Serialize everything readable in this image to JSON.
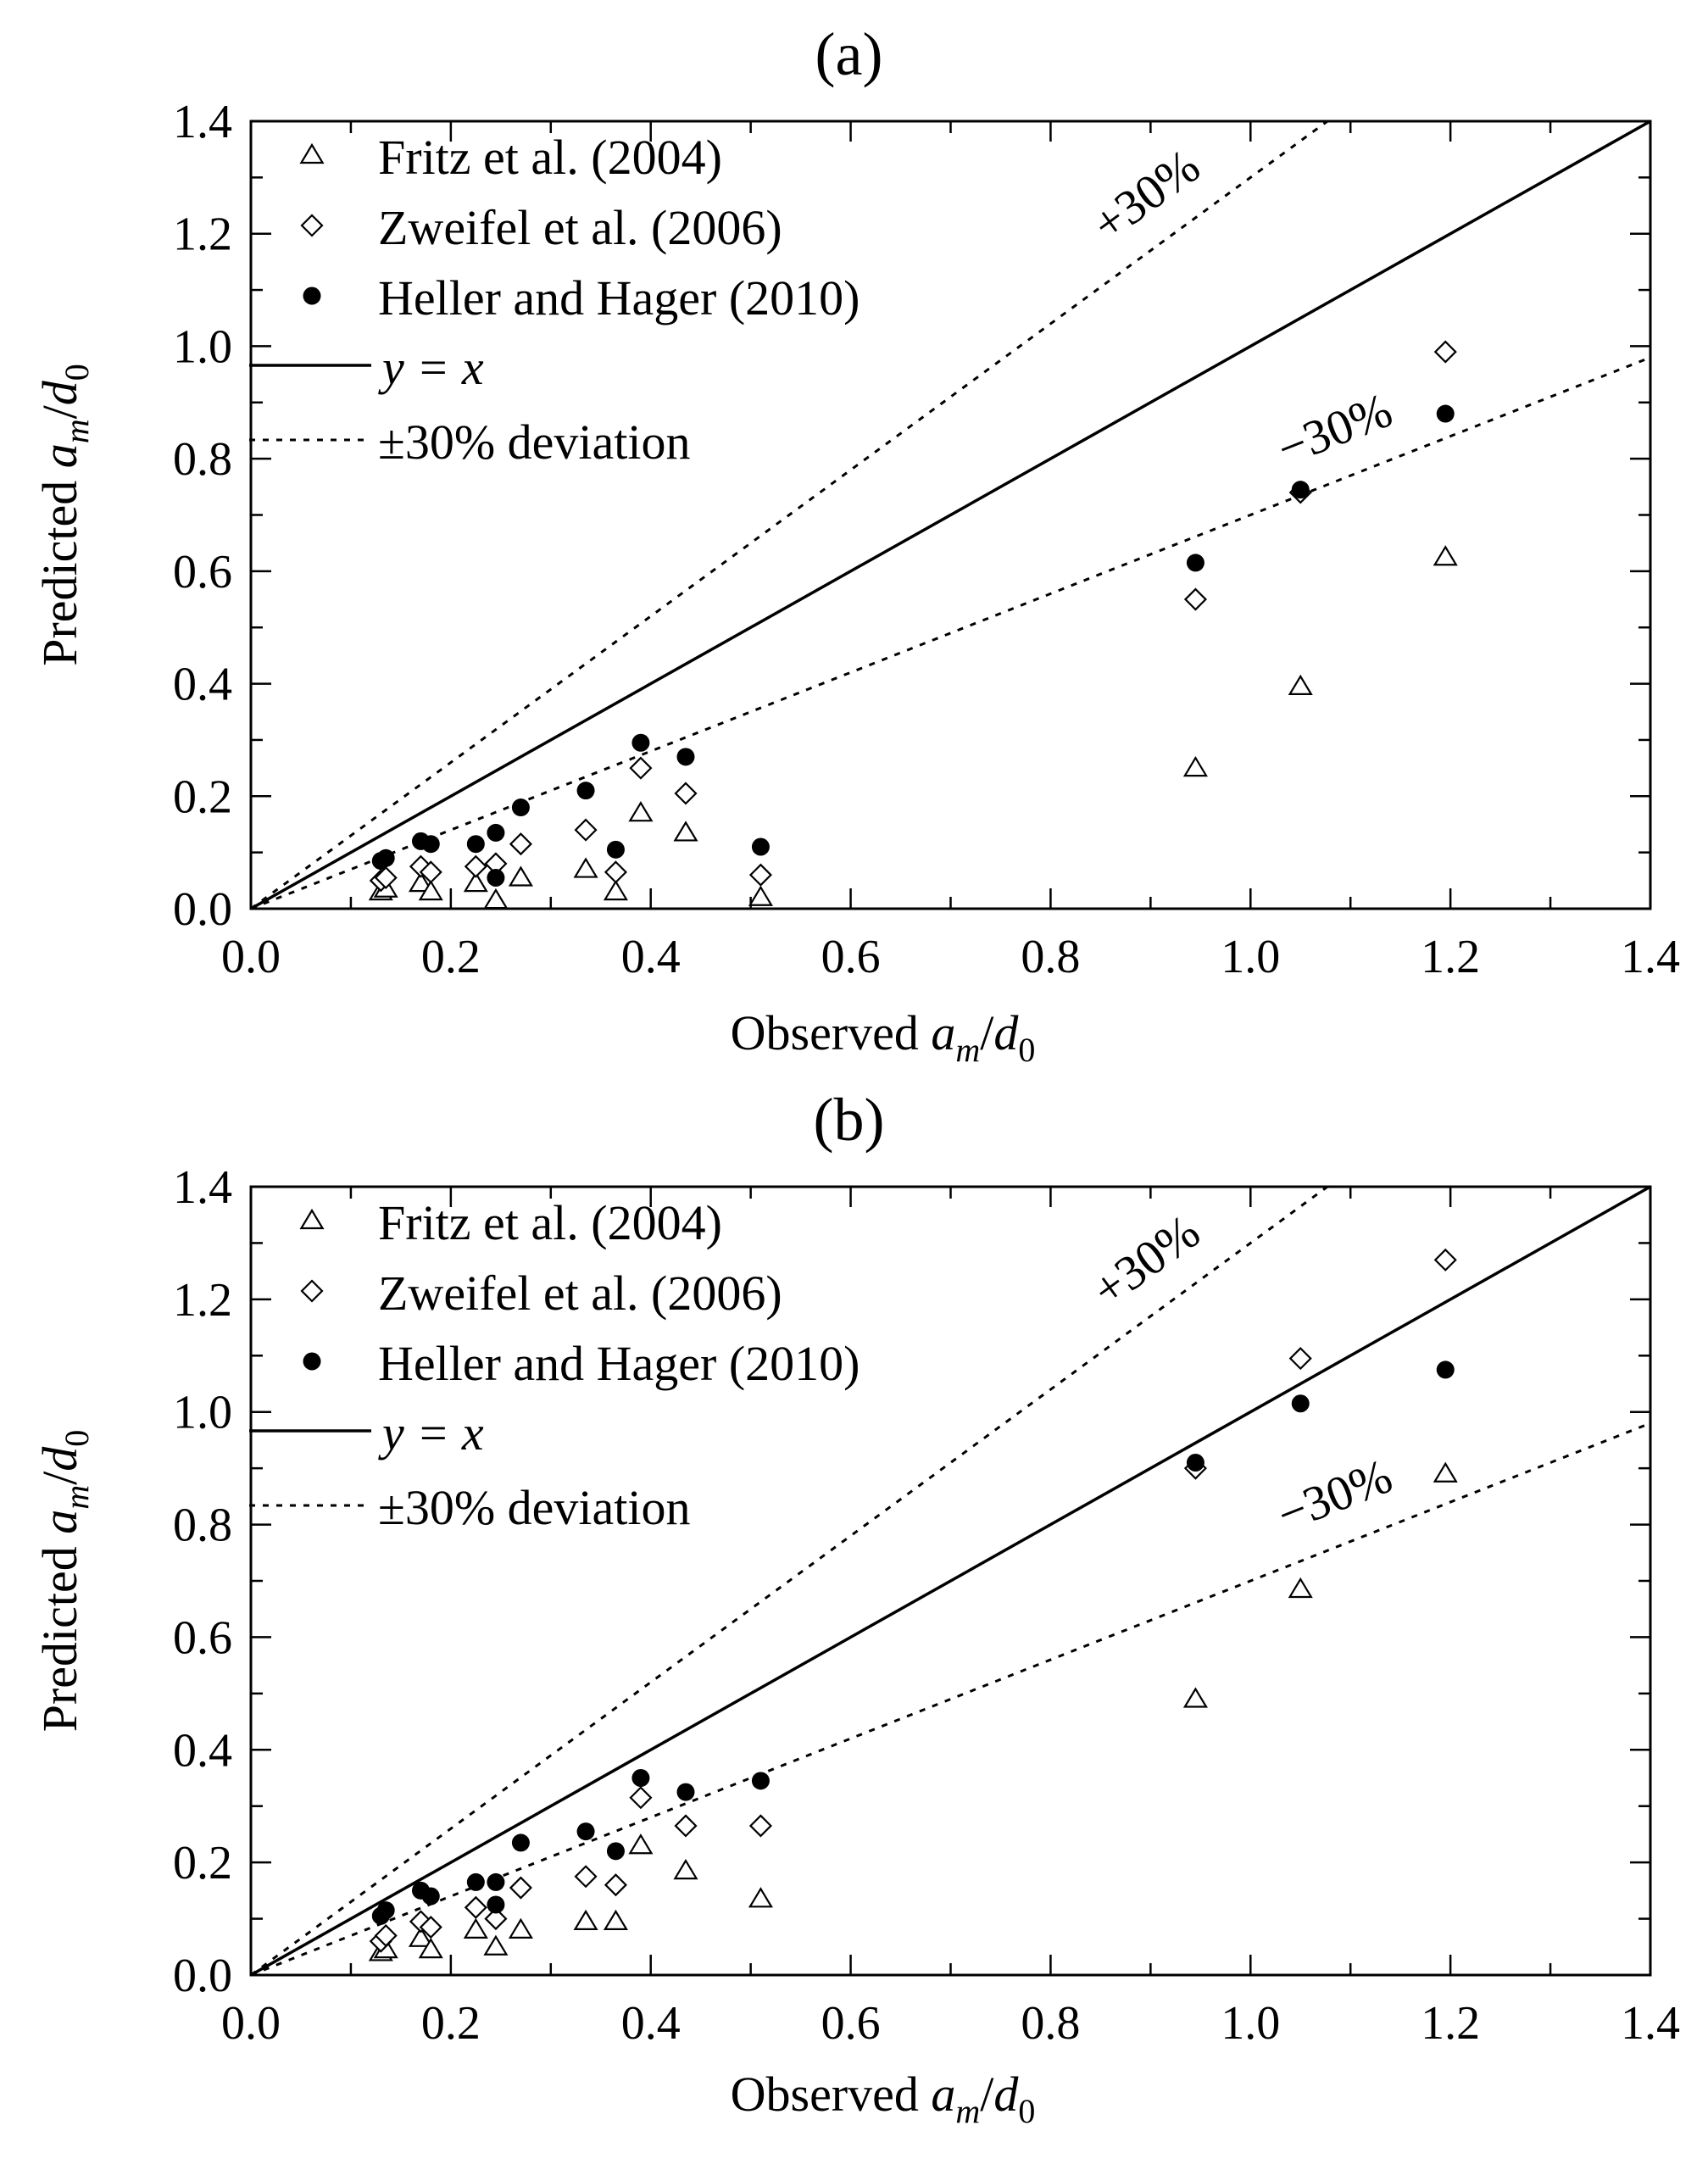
{
  "chart_data": [
    {
      "type": "scatter",
      "title": "(a)",
      "xlabel_main": "Observed ",
      "xlabel_var": "a",
      "xlabel_sub": "m",
      "xlabel_div": "/",
      "xlabel_var2": "d",
      "xlabel_sub2": "0",
      "ylabel_main": "Predicted ",
      "ylabel_var": "a",
      "ylabel_sub": "m",
      "ylabel_div": "/",
      "ylabel_var2": "d",
      "ylabel_sub2": "0",
      "xlim": [
        0,
        1.4
      ],
      "ylim": [
        0,
        1.4
      ],
      "xticks": [
        "0.0",
        "0.2",
        "0.4",
        "0.6",
        "0.8",
        "1.0",
        "1.2",
        "1.4"
      ],
      "yticks": [
        "0.0",
        "0.2",
        "0.4",
        "0.6",
        "0.8",
        "1.0",
        "1.2",
        "1.4"
      ],
      "legend_location": "top-left",
      "legend": {
        "fritz": "Fritz et al. (2004)",
        "zweifel": "Zweifel et al. (2006)",
        "heller": "Heller and Hager (2010)",
        "yx": "y = x",
        "dev": "±30% deviation"
      },
      "annotations": {
        "plus": "+30%",
        "minus": "−30%"
      },
      "reference_lines": [
        {
          "name": "y = x",
          "slope": 1.0,
          "style": "solid"
        },
        {
          "name": "+30%",
          "slope": 1.3,
          "style": "dotted"
        },
        {
          "name": "−30%",
          "slope": 0.7,
          "style": "dotted"
        }
      ],
      "series": [
        {
          "name": "Fritz et al. (2004)",
          "marker": "triangle",
          "x": [
            0.13,
            0.135,
            0.17,
            0.18,
            0.225,
            0.245,
            0.27,
            0.335,
            0.365,
            0.39,
            0.435,
            0.51,
            0.945,
            1.05,
            1.195
          ],
          "y": [
            0.03,
            0.035,
            0.045,
            0.03,
            0.045,
            0.015,
            0.055,
            0.07,
            0.03,
            0.17,
            0.135,
            0.02,
            0.25,
            0.395,
            0.625
          ]
        },
        {
          "name": "Zweifel et al. (2006)",
          "marker": "diamond",
          "x": [
            0.13,
            0.135,
            0.17,
            0.18,
            0.225,
            0.245,
            0.27,
            0.335,
            0.365,
            0.39,
            0.435,
            0.51,
            0.945,
            1.05,
            1.195
          ],
          "y": [
            0.05,
            0.055,
            0.075,
            0.065,
            0.075,
            0.08,
            0.115,
            0.14,
            0.065,
            0.25,
            0.205,
            0.06,
            0.55,
            0.74,
            0.99
          ]
        },
        {
          "name": "Heller and Hager (2010)",
          "marker": "filled-circle",
          "x": [
            0.13,
            0.135,
            0.17,
            0.18,
            0.225,
            0.245,
            0.245,
            0.27,
            0.335,
            0.365,
            0.39,
            0.435,
            0.51,
            0.945,
            1.05,
            1.195
          ],
          "y": [
            0.085,
            0.09,
            0.12,
            0.115,
            0.115,
            0.055,
            0.135,
            0.18,
            0.21,
            0.105,
            0.295,
            0.27,
            0.11,
            0.615,
            0.745,
            0.88
          ]
        }
      ]
    },
    {
      "type": "scatter",
      "title": "(b)",
      "xlabel_main": "Observed ",
      "xlabel_var": "a",
      "xlabel_sub": "m",
      "xlabel_div": "/",
      "xlabel_var2": "d",
      "xlabel_sub2": "0",
      "ylabel_main": "Predicted ",
      "ylabel_var": "a",
      "ylabel_sub": "m",
      "ylabel_div": "/",
      "ylabel_var2": "d",
      "ylabel_sub2": "0",
      "xlim": [
        0,
        1.4
      ],
      "ylim": [
        0,
        1.4
      ],
      "xticks": [
        "0.0",
        "0.2",
        "0.4",
        "0.6",
        "0.8",
        "1.0",
        "1.2",
        "1.4"
      ],
      "yticks": [
        "0.0",
        "0.2",
        "0.4",
        "0.6",
        "0.8",
        "1.0",
        "1.2",
        "1.4"
      ],
      "legend_location": "top-left",
      "legend": {
        "fritz": "Fritz et al. (2004)",
        "zweifel": "Zweifel et al. (2006)",
        "heller": "Heller and Hager (2010)",
        "yx": "y = x",
        "dev": "±30% deviation"
      },
      "annotations": {
        "plus": "+30%",
        "minus": "−30%"
      },
      "reference_lines": [
        {
          "name": "y = x",
          "slope": 1.0,
          "style": "solid"
        },
        {
          "name": "+30%",
          "slope": 1.3,
          "style": "dotted"
        },
        {
          "name": "−30%",
          "slope": 0.7,
          "style": "dotted"
        }
      ],
      "series": [
        {
          "name": "Fritz et al. (2004)",
          "marker": "triangle",
          "x": [
            0.13,
            0.135,
            0.17,
            0.18,
            0.225,
            0.245,
            0.27,
            0.335,
            0.365,
            0.39,
            0.435,
            0.51,
            0.945,
            1.05,
            1.195
          ],
          "y": [
            0.04,
            0.045,
            0.065,
            0.045,
            0.08,
            0.05,
            0.08,
            0.095,
            0.095,
            0.23,
            0.185,
            0.135,
            0.49,
            0.685,
            0.89
          ]
        },
        {
          "name": "Zweifel et al. (2006)",
          "marker": "diamond",
          "x": [
            0.13,
            0.135,
            0.17,
            0.18,
            0.225,
            0.245,
            0.27,
            0.335,
            0.365,
            0.39,
            0.435,
            0.51,
            0.945,
            1.05,
            1.195
          ],
          "y": [
            0.06,
            0.07,
            0.095,
            0.085,
            0.12,
            0.1,
            0.155,
            0.175,
            0.16,
            0.315,
            0.265,
            0.265,
            0.9,
            1.095,
            1.27
          ]
        },
        {
          "name": "Heller and Hager (2010)",
          "marker": "filled-circle",
          "x": [
            0.13,
            0.135,
            0.17,
            0.18,
            0.225,
            0.245,
            0.245,
            0.27,
            0.335,
            0.365,
            0.39,
            0.435,
            0.51,
            0.945,
            1.05,
            1.195
          ],
          "y": [
            0.105,
            0.115,
            0.15,
            0.14,
            0.165,
            0.165,
            0.125,
            0.235,
            0.255,
            0.22,
            0.35,
            0.325,
            0.345,
            0.91,
            1.015,
            1.075
          ]
        }
      ]
    }
  ]
}
